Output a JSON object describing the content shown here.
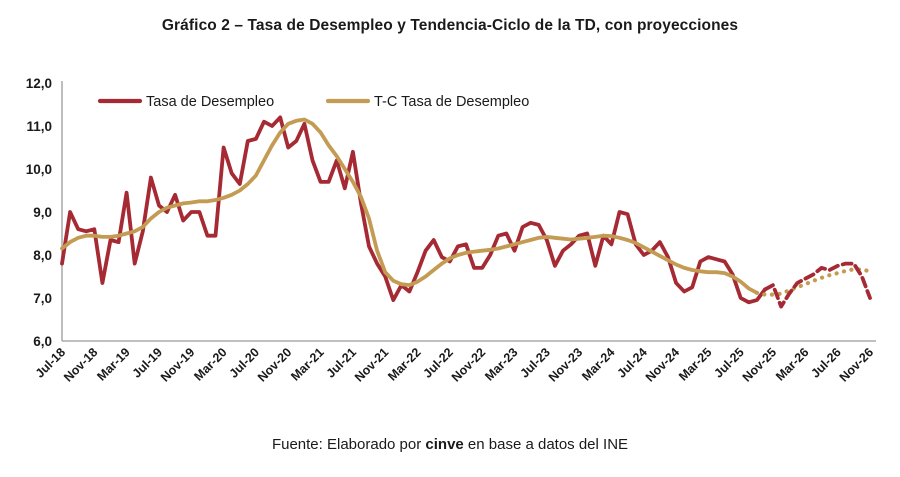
{
  "title": "Gráfico 2 – Tasa de Desempleo y Tendencia-Ciclo de la TD, con proyecciones",
  "footer": {
    "prefix": "Fuente: Elaborado por ",
    "brand": "cinve",
    "suffix": " en base a datos del INE"
  },
  "colors": {
    "unemployment_line": "#A52A34",
    "trend_line": "#C49B53",
    "brand_red": "#C00000",
    "axis_line": "#9A9A9A",
    "tick_text": "#1A1A1A",
    "legend_text": "#333333"
  },
  "legend": [
    {
      "label": "Tasa de Desempleo"
    },
    {
      "label": "T-C Tasa de Desempleo"
    }
  ],
  "chart_data": {
    "type": "line",
    "title": "Gráfico 2 – Tasa de Desempleo y Tendencia-Ciclo de la TD, con proyecciones",
    "xlabel": "",
    "ylabel": "",
    "ylim": [
      6.0,
      12.0
    ],
    "grid": false,
    "legend_position": "top-left",
    "x_unit": "month",
    "x_range": "Jul-2018 to Nov-2026",
    "y_tick_labels": [
      "12,0",
      "11,0",
      "10,0",
      "9,0",
      "8,0",
      "7,0",
      "6,0"
    ],
    "y_tick_values": [
      12,
      11,
      10,
      9,
      8,
      7,
      6
    ],
    "x_tick_labels": [
      "Jul-18",
      "Nov-18",
      "Mar-19",
      "Jul-19",
      "Nov-19",
      "Mar-20",
      "Jul-20",
      "Nov-20",
      "Mar-21",
      "Jul-21",
      "Nov-21",
      "Mar-22",
      "Jul-22",
      "Nov-22",
      "Mar-23",
      "Jul-23",
      "Nov-23",
      "Mar-24",
      "Jul-24",
      "Nov-24",
      "Mar-25",
      "Jul-25",
      "Nov-25",
      "Mar-26",
      "Jul-26",
      "Nov-26"
    ],
    "x_tick_every_n_months": 4,
    "projection_note": "dashed/dotted segments after late 2025 are projections",
    "series": [
      {
        "name": "Tasa de Desempleo",
        "color": "#A52A34",
        "width": 3.8,
        "history_style": "solid",
        "projection_style": "dashed",
        "projection_from_index": 87,
        "values": [
          7.8,
          9.0,
          8.6,
          8.55,
          8.6,
          7.35,
          8.35,
          8.3,
          9.45,
          7.8,
          8.55,
          9.8,
          9.15,
          9.0,
          9.4,
          8.8,
          9.0,
          9.0,
          8.45,
          8.45,
          10.5,
          9.9,
          9.65,
          10.65,
          10.7,
          11.1,
          11.0,
          11.2,
          10.5,
          10.65,
          11.05,
          10.2,
          9.7,
          9.7,
          10.2,
          9.55,
          10.4,
          9.2,
          8.2,
          7.8,
          7.5,
          6.95,
          7.3,
          7.15,
          7.6,
          8.1,
          8.35,
          7.95,
          7.85,
          8.2,
          8.25,
          7.7,
          7.7,
          8.0,
          8.45,
          8.5,
          8.1,
          8.65,
          8.75,
          8.7,
          8.35,
          7.75,
          8.1,
          8.25,
          8.45,
          8.5,
          7.75,
          8.45,
          8.25,
          9.0,
          8.95,
          8.25,
          8.0,
          8.1,
          8.3,
          7.95,
          7.35,
          7.15,
          7.25,
          7.85,
          7.95,
          7.9,
          7.85,
          7.55,
          7.0,
          6.9,
          6.95,
          7.2,
          7.3,
          6.8,
          7.1,
          7.35,
          7.45,
          7.55,
          7.7,
          7.65,
          7.75,
          7.8,
          7.8,
          7.5,
          7.0
        ]
      },
      {
        "name": "T-C Tasa de Desempleo",
        "color": "#C49B53",
        "width": 3.8,
        "history_style": "solid",
        "projection_style": "dotted",
        "projection_from_index": 86,
        "values": [
          8.15,
          8.3,
          8.4,
          8.45,
          8.45,
          8.42,
          8.42,
          8.45,
          8.5,
          8.55,
          8.65,
          8.85,
          9.0,
          9.1,
          9.15,
          9.2,
          9.22,
          9.25,
          9.25,
          9.28,
          9.33,
          9.4,
          9.5,
          9.65,
          9.85,
          10.2,
          10.55,
          10.85,
          11.05,
          11.12,
          11.15,
          11.05,
          10.85,
          10.55,
          10.3,
          10.0,
          9.7,
          9.35,
          8.85,
          8.1,
          7.6,
          7.4,
          7.32,
          7.3,
          7.38,
          7.5,
          7.65,
          7.8,
          7.92,
          8.0,
          8.05,
          8.08,
          8.1,
          8.12,
          8.15,
          8.2,
          8.25,
          8.3,
          8.35,
          8.4,
          8.42,
          8.4,
          8.38,
          8.36,
          8.38,
          8.4,
          8.42,
          8.45,
          8.44,
          8.4,
          8.35,
          8.28,
          8.18,
          8.08,
          7.98,
          7.88,
          7.78,
          7.7,
          7.65,
          7.62,
          7.6,
          7.6,
          7.58,
          7.5,
          7.38,
          7.22,
          7.12,
          7.08,
          7.08,
          7.1,
          7.18,
          7.25,
          7.32,
          7.4,
          7.47,
          7.53,
          7.58,
          7.63,
          7.67,
          7.66,
          7.62
        ]
      }
    ]
  }
}
